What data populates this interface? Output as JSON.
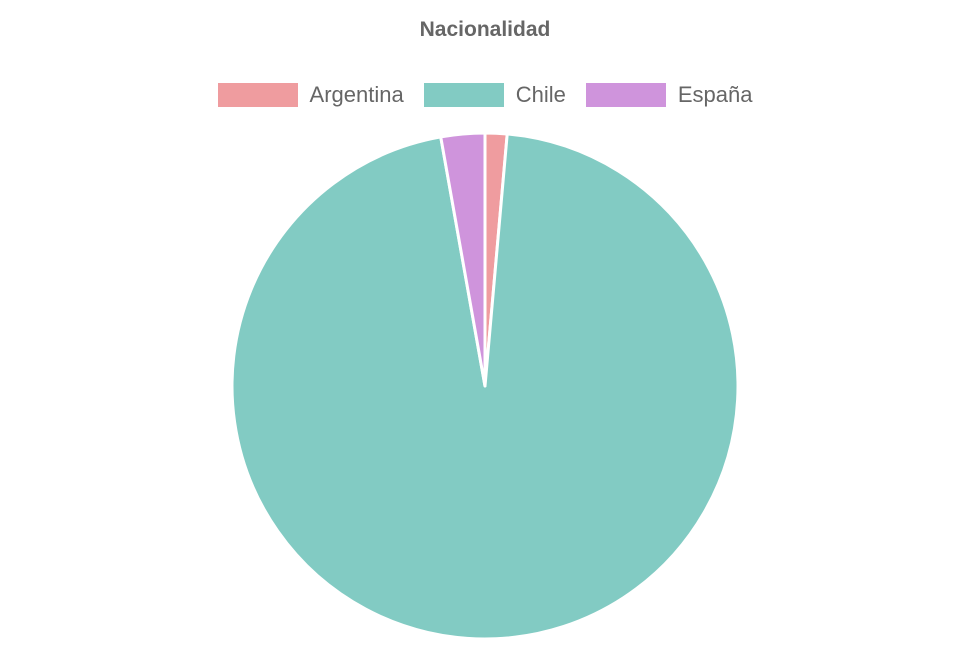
{
  "chart_data": {
    "type": "pie",
    "title": "Nacionalidad",
    "legend_position": "top",
    "categories": [
      "Argentina",
      "Chile",
      "España"
    ],
    "values": [
      1.4,
      95.8,
      2.8
    ],
    "colors": [
      "#EF9C9F",
      "#82CBC3",
      "#CF94DC"
    ]
  }
}
